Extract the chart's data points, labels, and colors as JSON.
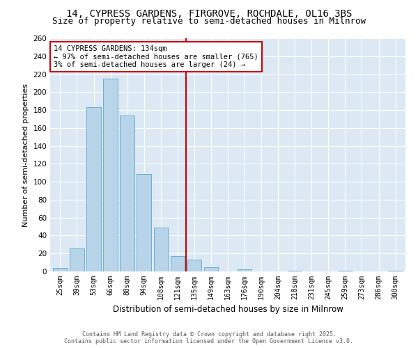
{
  "title": "14, CYPRESS GARDENS, FIRGROVE, ROCHDALE, OL16 3BS",
  "subtitle": "Size of property relative to semi-detached houses in Milnrow",
  "xlabel": "Distribution of semi-detached houses by size in Milnrow",
  "ylabel": "Number of semi-detached properties",
  "categories": [
    "25sqm",
    "39sqm",
    "53sqm",
    "66sqm",
    "80sqm",
    "94sqm",
    "108sqm",
    "121sqm",
    "135sqm",
    "149sqm",
    "163sqm",
    "176sqm",
    "190sqm",
    "204sqm",
    "218sqm",
    "231sqm",
    "245sqm",
    "259sqm",
    "273sqm",
    "286sqm",
    "300sqm"
  ],
  "values": [
    4,
    26,
    183,
    215,
    174,
    109,
    49,
    17,
    13,
    5,
    0,
    2,
    0,
    0,
    1,
    0,
    0,
    1,
    0,
    0,
    1
  ],
  "bar_color": "#b8d4e8",
  "bar_edge_color": "#6aaed6",
  "highlight_index": 8,
  "highlight_color": "#cc0000",
  "property_label": "14 CYPRESS GARDENS: 134sqm",
  "annotation_line1": "← 97% of semi-detached houses are smaller (765)",
  "annotation_line2": "3% of semi-detached houses are larger (24) →",
  "annotation_box_color": "#cc0000",
  "ylim": [
    0,
    260
  ],
  "yticks": [
    0,
    20,
    40,
    60,
    80,
    100,
    120,
    140,
    160,
    180,
    200,
    220,
    240,
    260
  ],
  "footer_line1": "Contains HM Land Registry data © Crown copyright and database right 2025.",
  "footer_line2": "Contains public sector information licensed under the Open Government Licence v3.0.",
  "bg_color": "#dce9f5",
  "title_fontsize": 10,
  "subtitle_fontsize": 9
}
